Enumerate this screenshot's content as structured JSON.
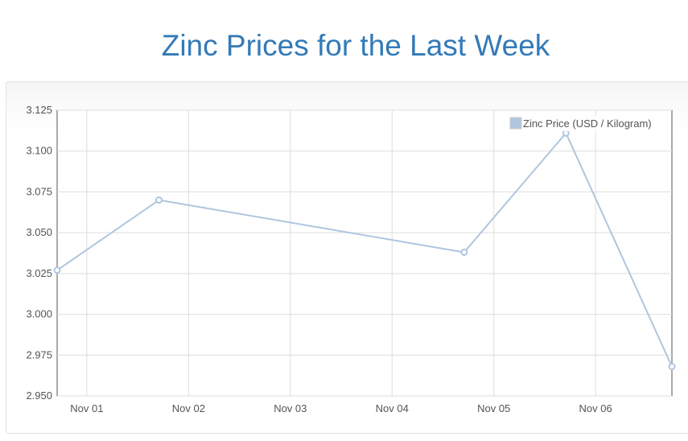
{
  "title": "Zinc Prices for the Last Week",
  "chart_data": {
    "type": "line",
    "title": "Zinc Prices for the Last Week",
    "xlabel": "",
    "ylabel": "",
    "x_ticks": [
      "Nov 01",
      "Nov 02",
      "Nov 03",
      "Nov 04",
      "Nov 05",
      "Nov 06"
    ],
    "y_ticks": [
      "2.950",
      "2.975",
      "3.000",
      "3.025",
      "3.050",
      "3.075",
      "3.100",
      "3.125"
    ],
    "ylim": [
      2.95,
      3.125
    ],
    "xlim": [
      "2023-10-31T17:00",
      "2023-11-06T18:00"
    ],
    "grid": true,
    "legend_position": "top-right",
    "color": "#afc6de",
    "series": [
      {
        "name": "Zinc Price (USD / Kilogram)",
        "points": [
          {
            "x": "2023-10-31T17:00",
            "y": 3.027
          },
          {
            "x": "2023-11-01T17:00",
            "y": 3.07
          },
          {
            "x": "2023-11-04T17:00",
            "y": 3.038
          },
          {
            "x": "2023-11-05T17:00",
            "y": 3.111
          },
          {
            "x": "2023-11-06T18:00",
            "y": 2.968
          }
        ]
      }
    ]
  }
}
